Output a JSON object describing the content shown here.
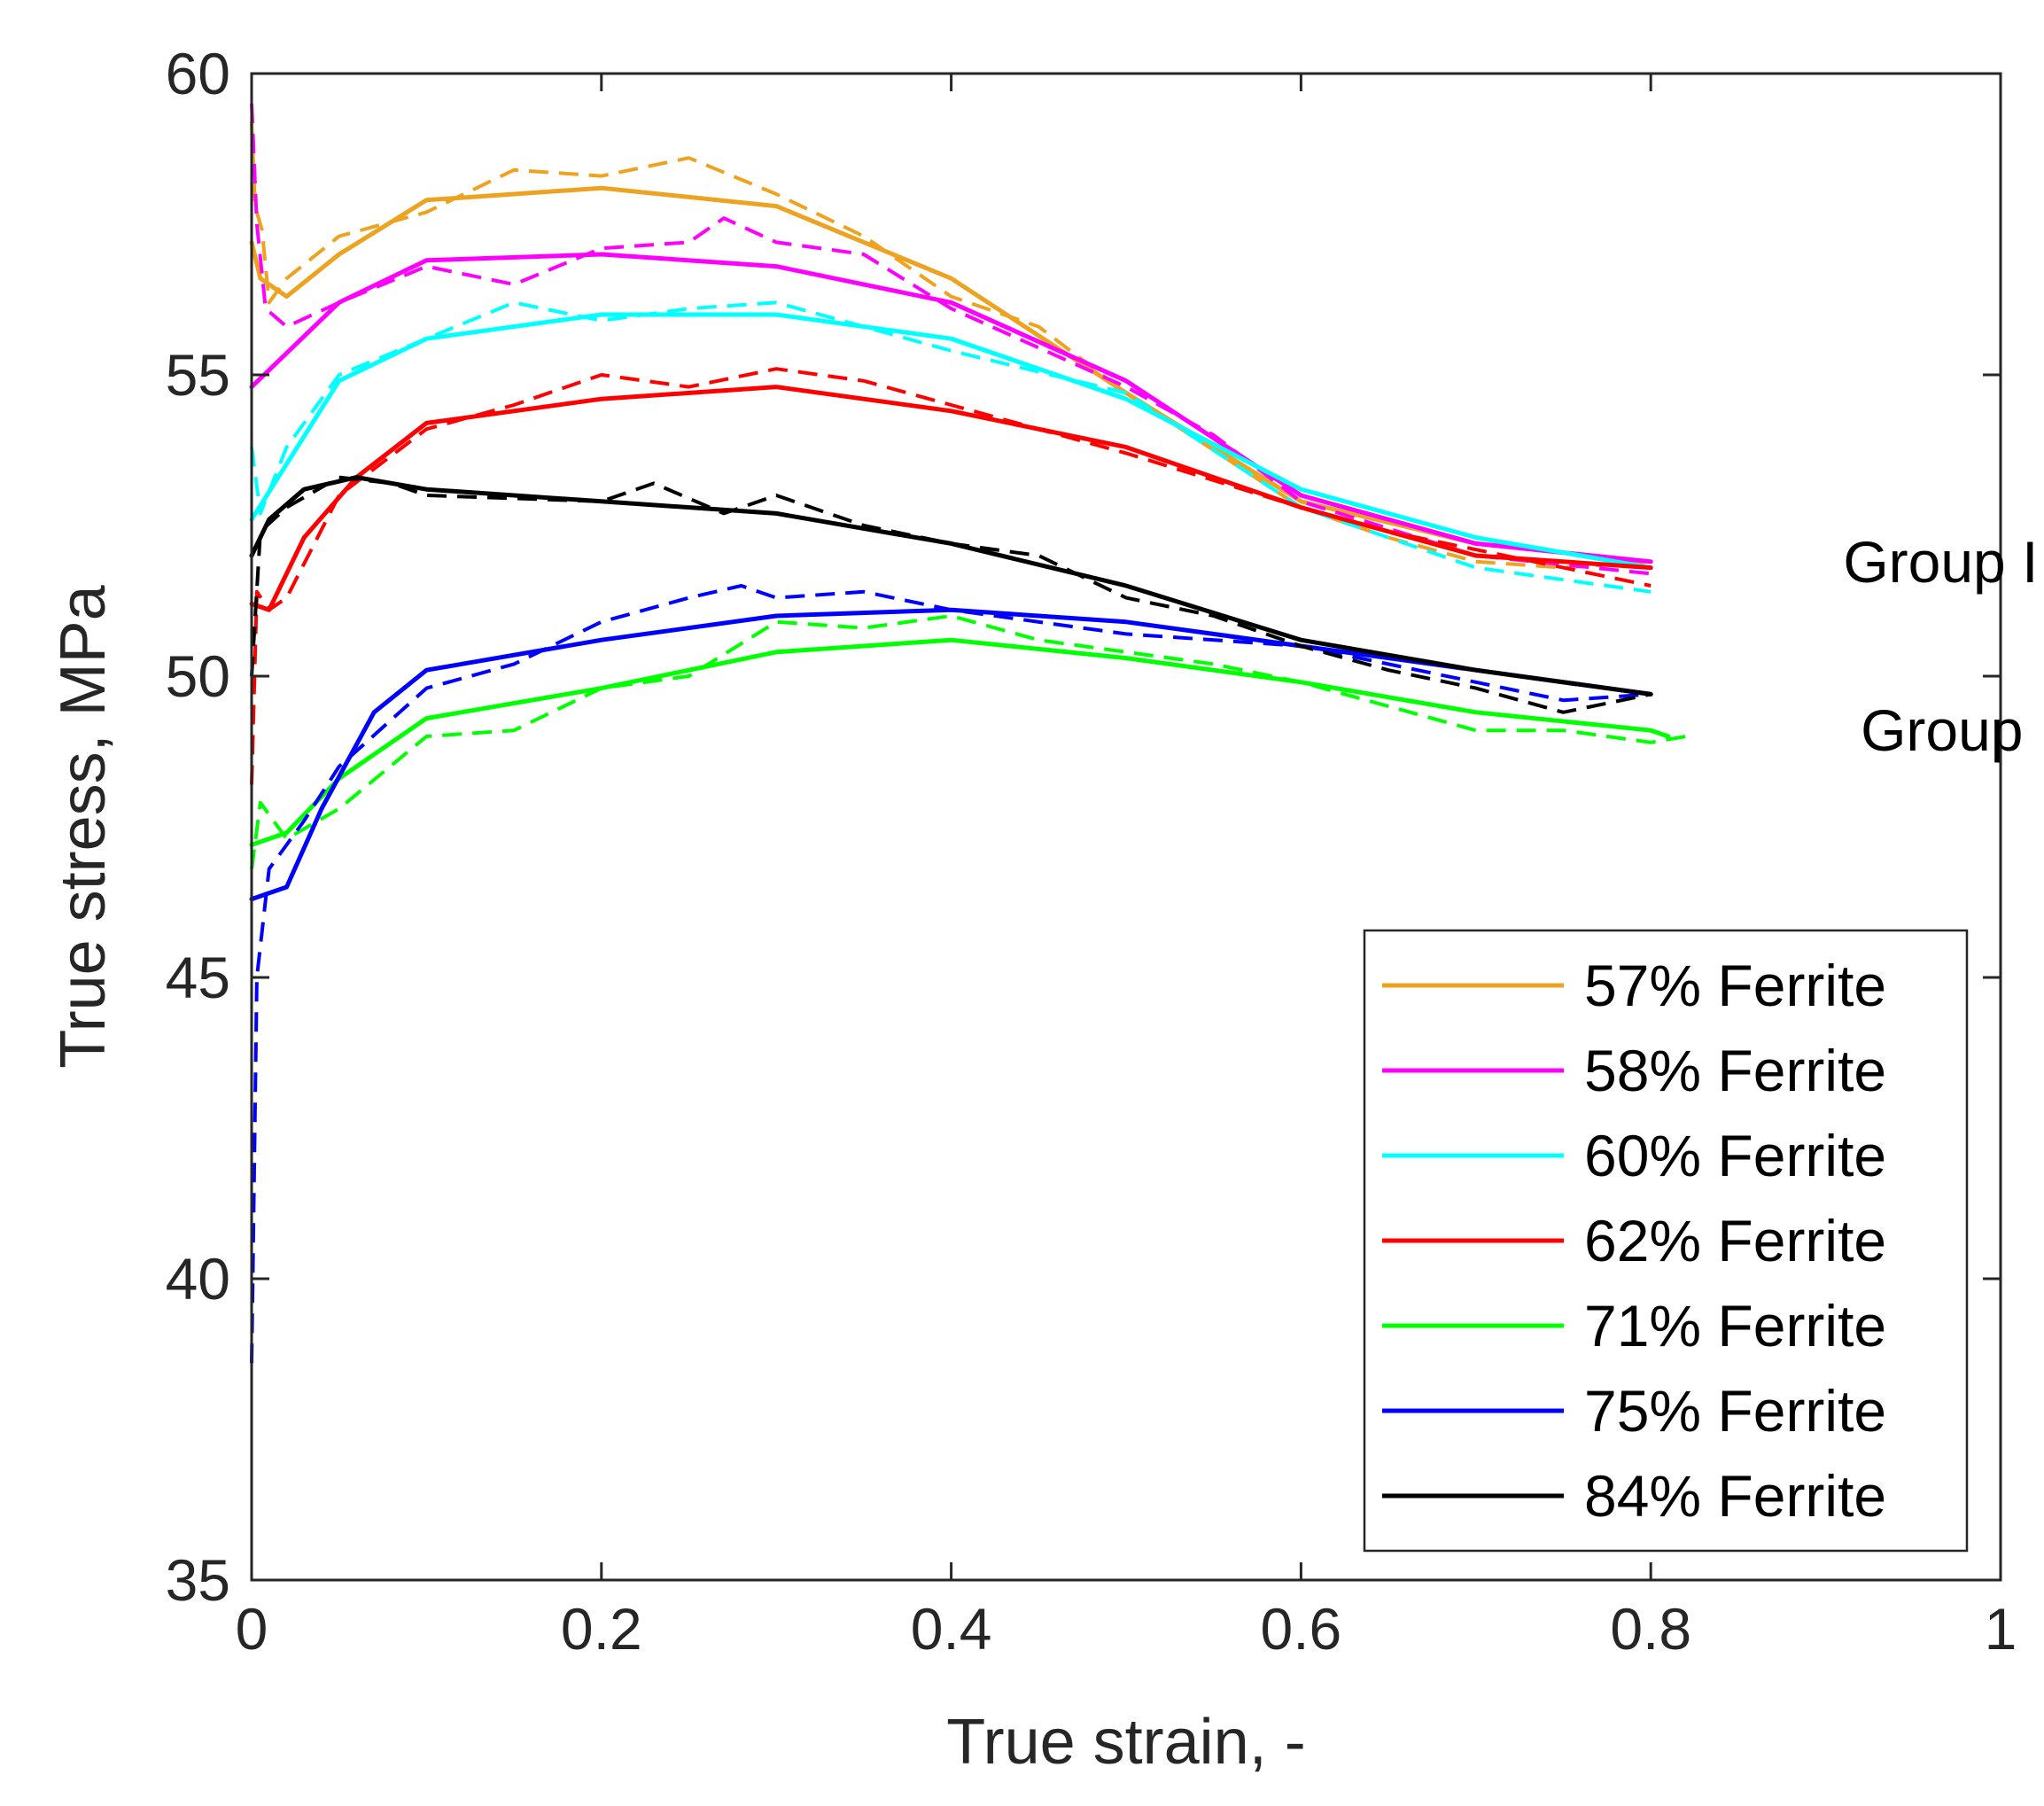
{
  "chart_data": {
    "type": "line",
    "title": "",
    "xlabel": "True strain, -",
    "ylabel": "True stress, MPa",
    "xlim": [
      0,
      1
    ],
    "ylim": [
      35,
      60
    ],
    "xticks": [
      0,
      0.2,
      0.4,
      0.6,
      0.8,
      1
    ],
    "xtick_labels": [
      "0",
      "0.2",
      "0.4",
      "0.6",
      "0.8",
      "1"
    ],
    "yticks": [
      35,
      40,
      45,
      50,
      55,
      60
    ],
    "ytick_labels": [
      "35",
      "40",
      "45",
      "50",
      "55",
      "60"
    ],
    "grid": false,
    "legend_position": "bottom-right",
    "annotations": [
      {
        "text": "Group I",
        "x": 0.91,
        "y": 51.9
      },
      {
        "text": "Group II",
        "x": 0.92,
        "y": 49.1
      }
    ],
    "series": [
      {
        "name": "57% Ferrite",
        "color": "#EDA31F",
        "fitted": [
          [
            0,
            57.2
          ],
          [
            0.005,
            56.6
          ],
          [
            0.02,
            56.3
          ],
          [
            0.05,
            57.0
          ],
          [
            0.1,
            57.9
          ],
          [
            0.2,
            58.1
          ],
          [
            0.3,
            57.8
          ],
          [
            0.4,
            56.6
          ],
          [
            0.5,
            54.7
          ],
          [
            0.6,
            52.9
          ],
          [
            0.7,
            52.2
          ],
          [
            0.8,
            51.9
          ]
        ],
        "experimental": [
          [
            0,
            59.2
          ],
          [
            0.002,
            57.8
          ],
          [
            0.006,
            57.4
          ],
          [
            0.01,
            56.2
          ],
          [
            0.02,
            56.6
          ],
          [
            0.05,
            57.3
          ],
          [
            0.1,
            57.7
          ],
          [
            0.15,
            58.4
          ],
          [
            0.2,
            58.3
          ],
          [
            0.25,
            58.6
          ],
          [
            0.3,
            58.0
          ],
          [
            0.35,
            57.3
          ],
          [
            0.4,
            56.3
          ],
          [
            0.45,
            55.8
          ],
          [
            0.5,
            54.7
          ],
          [
            0.6,
            52.8
          ],
          [
            0.65,
            52.3
          ],
          [
            0.7,
            51.9
          ],
          [
            0.75,
            51.8
          ],
          [
            0.8,
            51.9
          ]
        ]
      },
      {
        "name": "58% Ferrite",
        "color": "#FF00FF",
        "fitted": [
          [
            0,
            54.8
          ],
          [
            0.05,
            56.2
          ],
          [
            0.1,
            56.9
          ],
          [
            0.2,
            57.0
          ],
          [
            0.3,
            56.8
          ],
          [
            0.4,
            56.2
          ],
          [
            0.5,
            54.9
          ],
          [
            0.6,
            53.0
          ],
          [
            0.7,
            52.2
          ],
          [
            0.8,
            51.9
          ]
        ],
        "experimental": [
          [
            0,
            59.5
          ],
          [
            0.003,
            57.5
          ],
          [
            0.008,
            56.1
          ],
          [
            0.02,
            55.8
          ],
          [
            0.05,
            56.2
          ],
          [
            0.1,
            56.8
          ],
          [
            0.15,
            56.5
          ],
          [
            0.2,
            57.1
          ],
          [
            0.25,
            57.2
          ],
          [
            0.27,
            57.6
          ],
          [
            0.3,
            57.2
          ],
          [
            0.35,
            57.0
          ],
          [
            0.4,
            56.1
          ],
          [
            0.5,
            54.8
          ],
          [
            0.55,
            54.0
          ],
          [
            0.6,
            52.9
          ],
          [
            0.7,
            52.0
          ],
          [
            0.8,
            51.7
          ]
        ]
      },
      {
        "name": "60% Ferrite",
        "color": "#00FFFF",
        "fitted": [
          [
            0,
            52.6
          ],
          [
            0.05,
            54.9
          ],
          [
            0.1,
            55.6
          ],
          [
            0.2,
            56.0
          ],
          [
            0.3,
            56.0
          ],
          [
            0.4,
            55.6
          ],
          [
            0.5,
            54.6
          ],
          [
            0.6,
            53.1
          ],
          [
            0.7,
            52.3
          ],
          [
            0.8,
            51.8
          ]
        ],
        "experimental": [
          [
            0,
            53.8
          ],
          [
            0.005,
            52.7
          ],
          [
            0.02,
            53.8
          ],
          [
            0.05,
            55.0
          ],
          [
            0.1,
            55.6
          ],
          [
            0.15,
            56.2
          ],
          [
            0.2,
            55.9
          ],
          [
            0.25,
            56.1
          ],
          [
            0.3,
            56.2
          ],
          [
            0.35,
            55.8
          ],
          [
            0.4,
            55.4
          ],
          [
            0.5,
            54.7
          ],
          [
            0.6,
            52.8
          ],
          [
            0.65,
            52.3
          ],
          [
            0.7,
            51.8
          ],
          [
            0.75,
            51.6
          ],
          [
            0.8,
            51.4
          ]
        ]
      },
      {
        "name": "62% Ferrite",
        "color": "#FF0000",
        "fitted": [
          [
            0,
            51.2
          ],
          [
            0.01,
            51.1
          ],
          [
            0.03,
            52.3
          ],
          [
            0.06,
            53.3
          ],
          [
            0.1,
            54.2
          ],
          [
            0.2,
            54.6
          ],
          [
            0.3,
            54.8
          ],
          [
            0.4,
            54.4
          ],
          [
            0.5,
            53.8
          ],
          [
            0.6,
            52.8
          ],
          [
            0.7,
            52.0
          ],
          [
            0.8,
            51.8
          ]
        ],
        "experimental": [
          [
            0,
            48.2
          ],
          [
            0.003,
            51.4
          ],
          [
            0.01,
            51.1
          ],
          [
            0.02,
            51.3
          ],
          [
            0.05,
            53.0
          ],
          [
            0.1,
            54.1
          ],
          [
            0.15,
            54.5
          ],
          [
            0.2,
            55.0
          ],
          [
            0.25,
            54.8
          ],
          [
            0.3,
            55.1
          ],
          [
            0.35,
            54.9
          ],
          [
            0.4,
            54.5
          ],
          [
            0.5,
            53.7
          ],
          [
            0.6,
            52.8
          ],
          [
            0.65,
            52.4
          ],
          [
            0.7,
            52.1
          ],
          [
            0.75,
            51.8
          ],
          [
            0.8,
            51.5
          ]
        ]
      },
      {
        "name": "71% Ferrite",
        "color": "#00FF00",
        "fitted": [
          [
            0,
            47.2
          ],
          [
            0.02,
            47.4
          ],
          [
            0.05,
            48.3
          ],
          [
            0.1,
            49.3
          ],
          [
            0.2,
            49.8
          ],
          [
            0.3,
            50.4
          ],
          [
            0.4,
            50.6
          ],
          [
            0.5,
            50.3
          ],
          [
            0.6,
            49.9
          ],
          [
            0.7,
            49.4
          ],
          [
            0.8,
            49.1
          ],
          [
            0.81,
            49.0
          ]
        ],
        "experimental": [
          [
            0,
            46.8
          ],
          [
            0.005,
            47.9
          ],
          [
            0.02,
            47.3
          ],
          [
            0.05,
            47.8
          ],
          [
            0.1,
            49.0
          ],
          [
            0.15,
            49.1
          ],
          [
            0.2,
            49.8
          ],
          [
            0.25,
            50.0
          ],
          [
            0.3,
            50.9
          ],
          [
            0.35,
            50.8
          ],
          [
            0.4,
            51.0
          ],
          [
            0.45,
            50.6
          ],
          [
            0.5,
            50.4
          ],
          [
            0.55,
            50.2
          ],
          [
            0.6,
            49.9
          ],
          [
            0.7,
            49.1
          ],
          [
            0.75,
            49.1
          ],
          [
            0.8,
            48.9
          ],
          [
            0.82,
            49.0
          ]
        ]
      },
      {
        "name": "75% Ferrite",
        "color": "#0000FF",
        "fitted": [
          [
            0,
            46.3
          ],
          [
            0.02,
            46.5
          ],
          [
            0.04,
            47.8
          ],
          [
            0.07,
            49.4
          ],
          [
            0.1,
            50.1
          ],
          [
            0.2,
            50.6
          ],
          [
            0.3,
            51.0
          ],
          [
            0.4,
            51.1
          ],
          [
            0.5,
            50.9
          ],
          [
            0.6,
            50.5
          ],
          [
            0.7,
            50.1
          ],
          [
            0.8,
            49.7
          ]
        ],
        "experimental": [
          [
            0,
            38.6
          ],
          [
            0.003,
            45.0
          ],
          [
            0.01,
            46.8
          ],
          [
            0.03,
            47.6
          ],
          [
            0.05,
            48.5
          ],
          [
            0.1,
            49.8
          ],
          [
            0.15,
            50.2
          ],
          [
            0.2,
            50.9
          ],
          [
            0.25,
            51.3
          ],
          [
            0.28,
            51.5
          ],
          [
            0.3,
            51.3
          ],
          [
            0.35,
            51.4
          ],
          [
            0.4,
            51.1
          ],
          [
            0.5,
            50.7
          ],
          [
            0.6,
            50.5
          ],
          [
            0.7,
            49.9
          ],
          [
            0.75,
            49.6
          ],
          [
            0.8,
            49.7
          ]
        ]
      },
      {
        "name": "84% Ferrite",
        "color": "#000000",
        "fitted": [
          [
            0,
            52.0
          ],
          [
            0.01,
            52.6
          ],
          [
            0.03,
            53.1
          ],
          [
            0.06,
            53.3
          ],
          [
            0.1,
            53.1
          ],
          [
            0.2,
            52.9
          ],
          [
            0.3,
            52.7
          ],
          [
            0.4,
            52.2
          ],
          [
            0.5,
            51.5
          ],
          [
            0.6,
            50.6
          ],
          [
            0.7,
            50.1
          ],
          [
            0.8,
            49.7
          ]
        ],
        "experimental": [
          [
            0,
            50.0
          ],
          [
            0.005,
            52.4
          ],
          [
            0.02,
            52.8
          ],
          [
            0.05,
            53.3
          ],
          [
            0.08,
            53.2
          ],
          [
            0.1,
            53.0
          ],
          [
            0.2,
            52.9
          ],
          [
            0.23,
            53.2
          ],
          [
            0.27,
            52.7
          ],
          [
            0.3,
            53.0
          ],
          [
            0.35,
            52.5
          ],
          [
            0.4,
            52.2
          ],
          [
            0.45,
            52.0
          ],
          [
            0.5,
            51.3
          ],
          [
            0.55,
            51.0
          ],
          [
            0.6,
            50.5
          ],
          [
            0.65,
            50.1
          ],
          [
            0.7,
            49.8
          ],
          [
            0.75,
            49.4
          ],
          [
            0.8,
            49.7
          ]
        ]
      }
    ]
  }
}
